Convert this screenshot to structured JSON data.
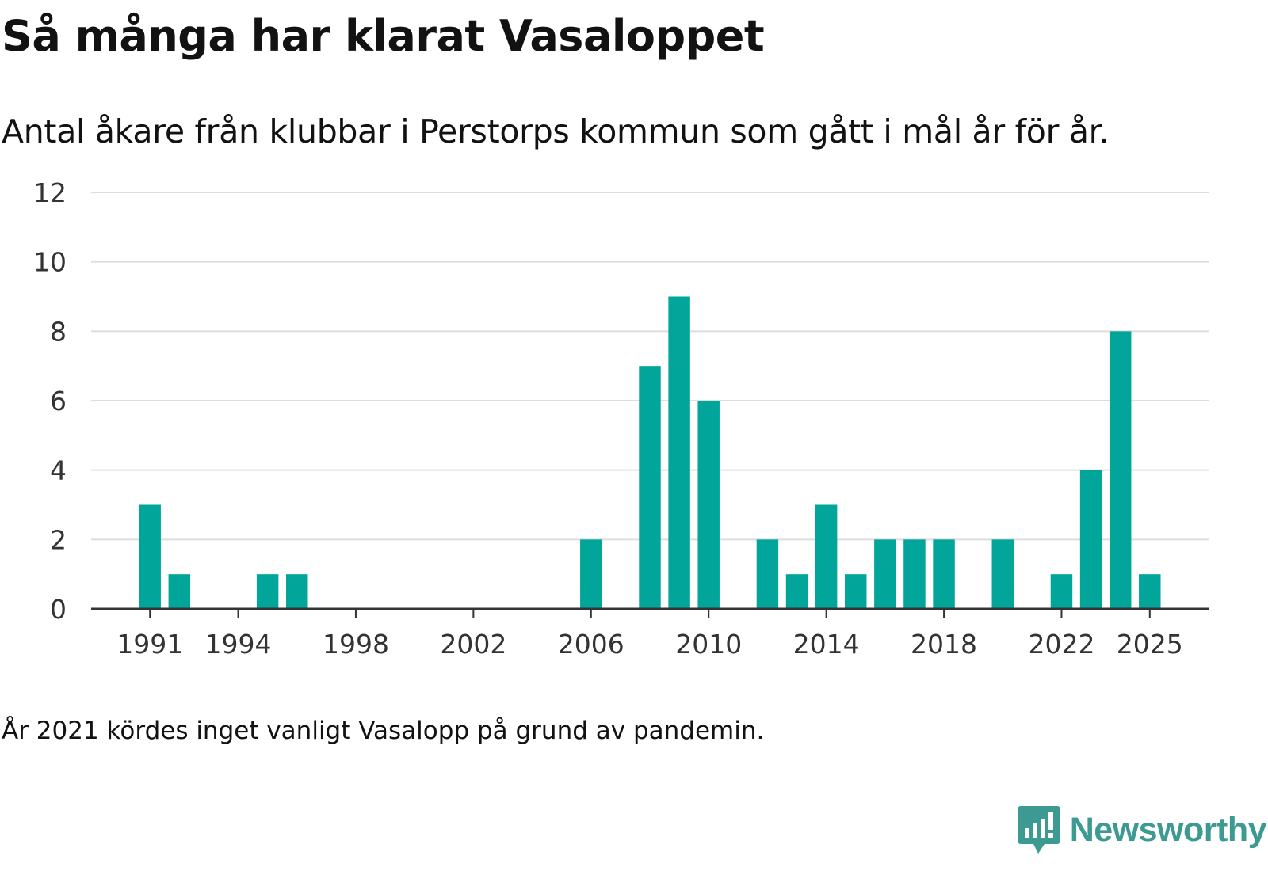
{
  "title": "Så många har klarat Vasaloppet",
  "subtitle": "Antal åkare från klubbar i Perstorps kommun som gått i mål år för år.",
  "footnote": "År 2021 kördes inget vanligt Vasalopp på grund av pandemin.",
  "brand": {
    "name": "Newsworthy",
    "icon": "newsworthy-logo-icon",
    "color": "#3d9a92"
  },
  "colors": {
    "bar": "#02a599",
    "grid": "#dddddd",
    "axis": "#333333",
    "text": "#121212"
  },
  "chart_data": {
    "type": "bar",
    "title": "Så många har klarat Vasaloppet",
    "xlabel": "",
    "ylabel": "",
    "x_range": [
      1989,
      2027
    ],
    "ylim": [
      0,
      12
    ],
    "yticks": [
      0,
      2,
      4,
      6,
      8,
      10,
      12
    ],
    "xticks": [
      1991,
      1994,
      1998,
      2002,
      2006,
      2010,
      2014,
      2018,
      2022,
      2025
    ],
    "grid": true,
    "legend": "none",
    "categories": [
      1991,
      1992,
      1995,
      1996,
      2006,
      2008,
      2009,
      2010,
      2012,
      2013,
      2014,
      2015,
      2016,
      2017,
      2018,
      2020,
      2022,
      2023,
      2024,
      2025
    ],
    "values": [
      3,
      1,
      1,
      1,
      2,
      7,
      9,
      6,
      2,
      1,
      3,
      1,
      2,
      2,
      2,
      2,
      1,
      4,
      8,
      1
    ]
  }
}
